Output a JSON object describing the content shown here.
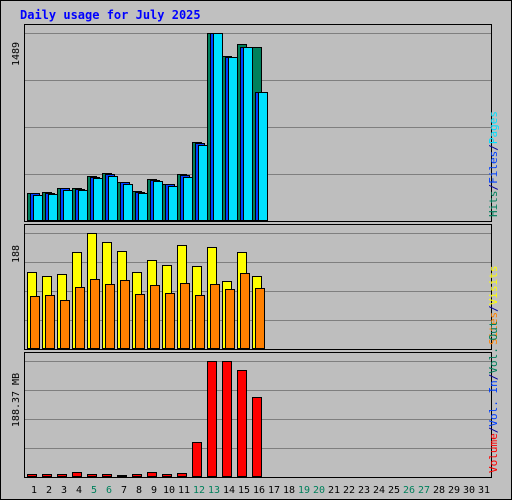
{
  "chart_data": {
    "title": "Daily usage for July 2025",
    "type": "bar",
    "days": [
      "1",
      "2",
      "3",
      "4",
      "5",
      "6",
      "7",
      "8",
      "9",
      "10",
      "11",
      "12",
      "13",
      "14",
      "15",
      "16",
      "17",
      "18",
      "19",
      "20",
      "21",
      "22",
      "23",
      "24",
      "25",
      "26",
      "27",
      "28",
      "29",
      "30",
      "31"
    ],
    "weekend_days": [
      "5",
      "6",
      "12",
      "13",
      "19",
      "20",
      "26",
      "27"
    ],
    "panels": [
      {
        "id": "hits",
        "max_label": "1489",
        "ylim": [
          0,
          1489
        ],
        "right_legend": [
          {
            "text": "Hits",
            "color": "#00805c"
          },
          {
            "text": "/",
            "color": "#0000a0"
          },
          {
            "text": "Files",
            "color": "#0040ff"
          },
          {
            "text": "/",
            "color": "#0000a0"
          },
          {
            "text": "Pages",
            "color": "#00e0ff"
          }
        ],
        "series": [
          {
            "name": "Hits",
            "color": "#00805c",
            "values": [
              222,
              226,
              264,
              259,
              357,
              377,
              310,
              238,
              334,
              295,
              369,
              626,
              1489,
              1310,
              1398,
              1379
            ]
          },
          {
            "name": "Files",
            "color": "#0040ff",
            "values": [
              218,
              222,
              259,
              254,
              350,
              370,
              305,
              232,
              327,
              290,
              362,
              615,
              1489,
              1300,
              1380,
              1020
            ]
          },
          {
            "name": "Pages",
            "color": "#00e0ff",
            "values": [
              206,
              210,
              248,
              244,
              338,
              359,
              296,
              222,
              314,
              281,
              347,
              605,
              1489,
              1299,
              1380,
              1020
            ]
          }
        ]
      },
      {
        "id": "visits",
        "max_label": "188",
        "ylim": [
          0,
          188
        ],
        "right_legend": [
          {
            "text": "Sites",
            "color": "#ff8000"
          },
          {
            "text": "/",
            "color": "#0000a0"
          },
          {
            "text": "Visits",
            "color": "#ffff00"
          }
        ],
        "series": [
          {
            "name": "Visits",
            "color": "#ffff00",
            "values": [
              124,
              119,
              122,
              158,
              188,
              173,
              159,
              125,
              144,
              136,
              169,
              135,
              166,
              111,
              157,
              119
            ]
          },
          {
            "name": "Sites",
            "color": "#ff8000",
            "values": [
              86,
              88,
              79,
              100,
              114,
              106,
              112,
              89,
              104,
              91,
              107,
              87,
              106,
              98,
              123,
              99
            ]
          }
        ]
      },
      {
        "id": "volume",
        "max_label": "188.37 MB",
        "ylim": [
          0,
          188.37
        ],
        "right_legend": [
          {
            "text": "Volume",
            "color": "#ff0000"
          },
          {
            "text": "/",
            "color": "#0000a0"
          },
          {
            "text": "Vol. In",
            "color": "#0040ff"
          },
          {
            "text": "/",
            "color": "#0000a0"
          },
          {
            "text": "Vol. Out",
            "color": "#00805c"
          }
        ],
        "series": [
          {
            "name": "Volume",
            "color": "#ff0000",
            "values": [
              4.5,
              4.5,
              4.5,
              7.5,
              4.5,
              4.5,
              3.5,
              4.5,
              7.5,
              5.5,
              6.5,
              57,
              188.37,
              188.37,
              174,
              130,
              0,
              0,
              0,
              0,
              0,
              0,
              0,
              0,
              0,
              0,
              0,
              0,
              0,
              0,
              0
            ]
          }
        ]
      }
    ],
    "colors": {
      "background": "#bebebe",
      "frame_bg": "#c0c0c0",
      "grid": "#7f7f7f",
      "title": "#0000ff",
      "day_label": "#000000",
      "weekend_label": "#00805c"
    }
  }
}
